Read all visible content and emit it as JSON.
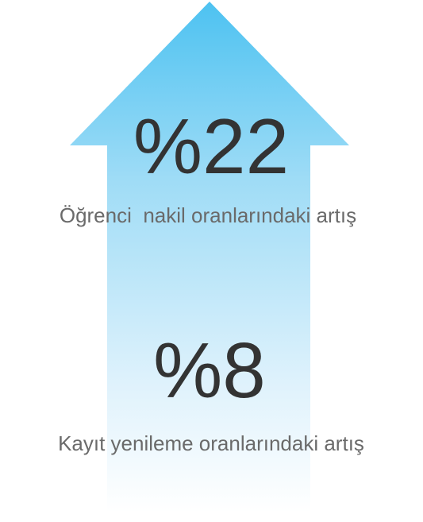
{
  "stats": [
    {
      "figure": "%22",
      "caption": "Öğrenci  nakil oranlarındaki artış"
    },
    {
      "figure": "%8",
      "caption": "Kayıt yenileme oranlarındaki artış"
    }
  ]
}
